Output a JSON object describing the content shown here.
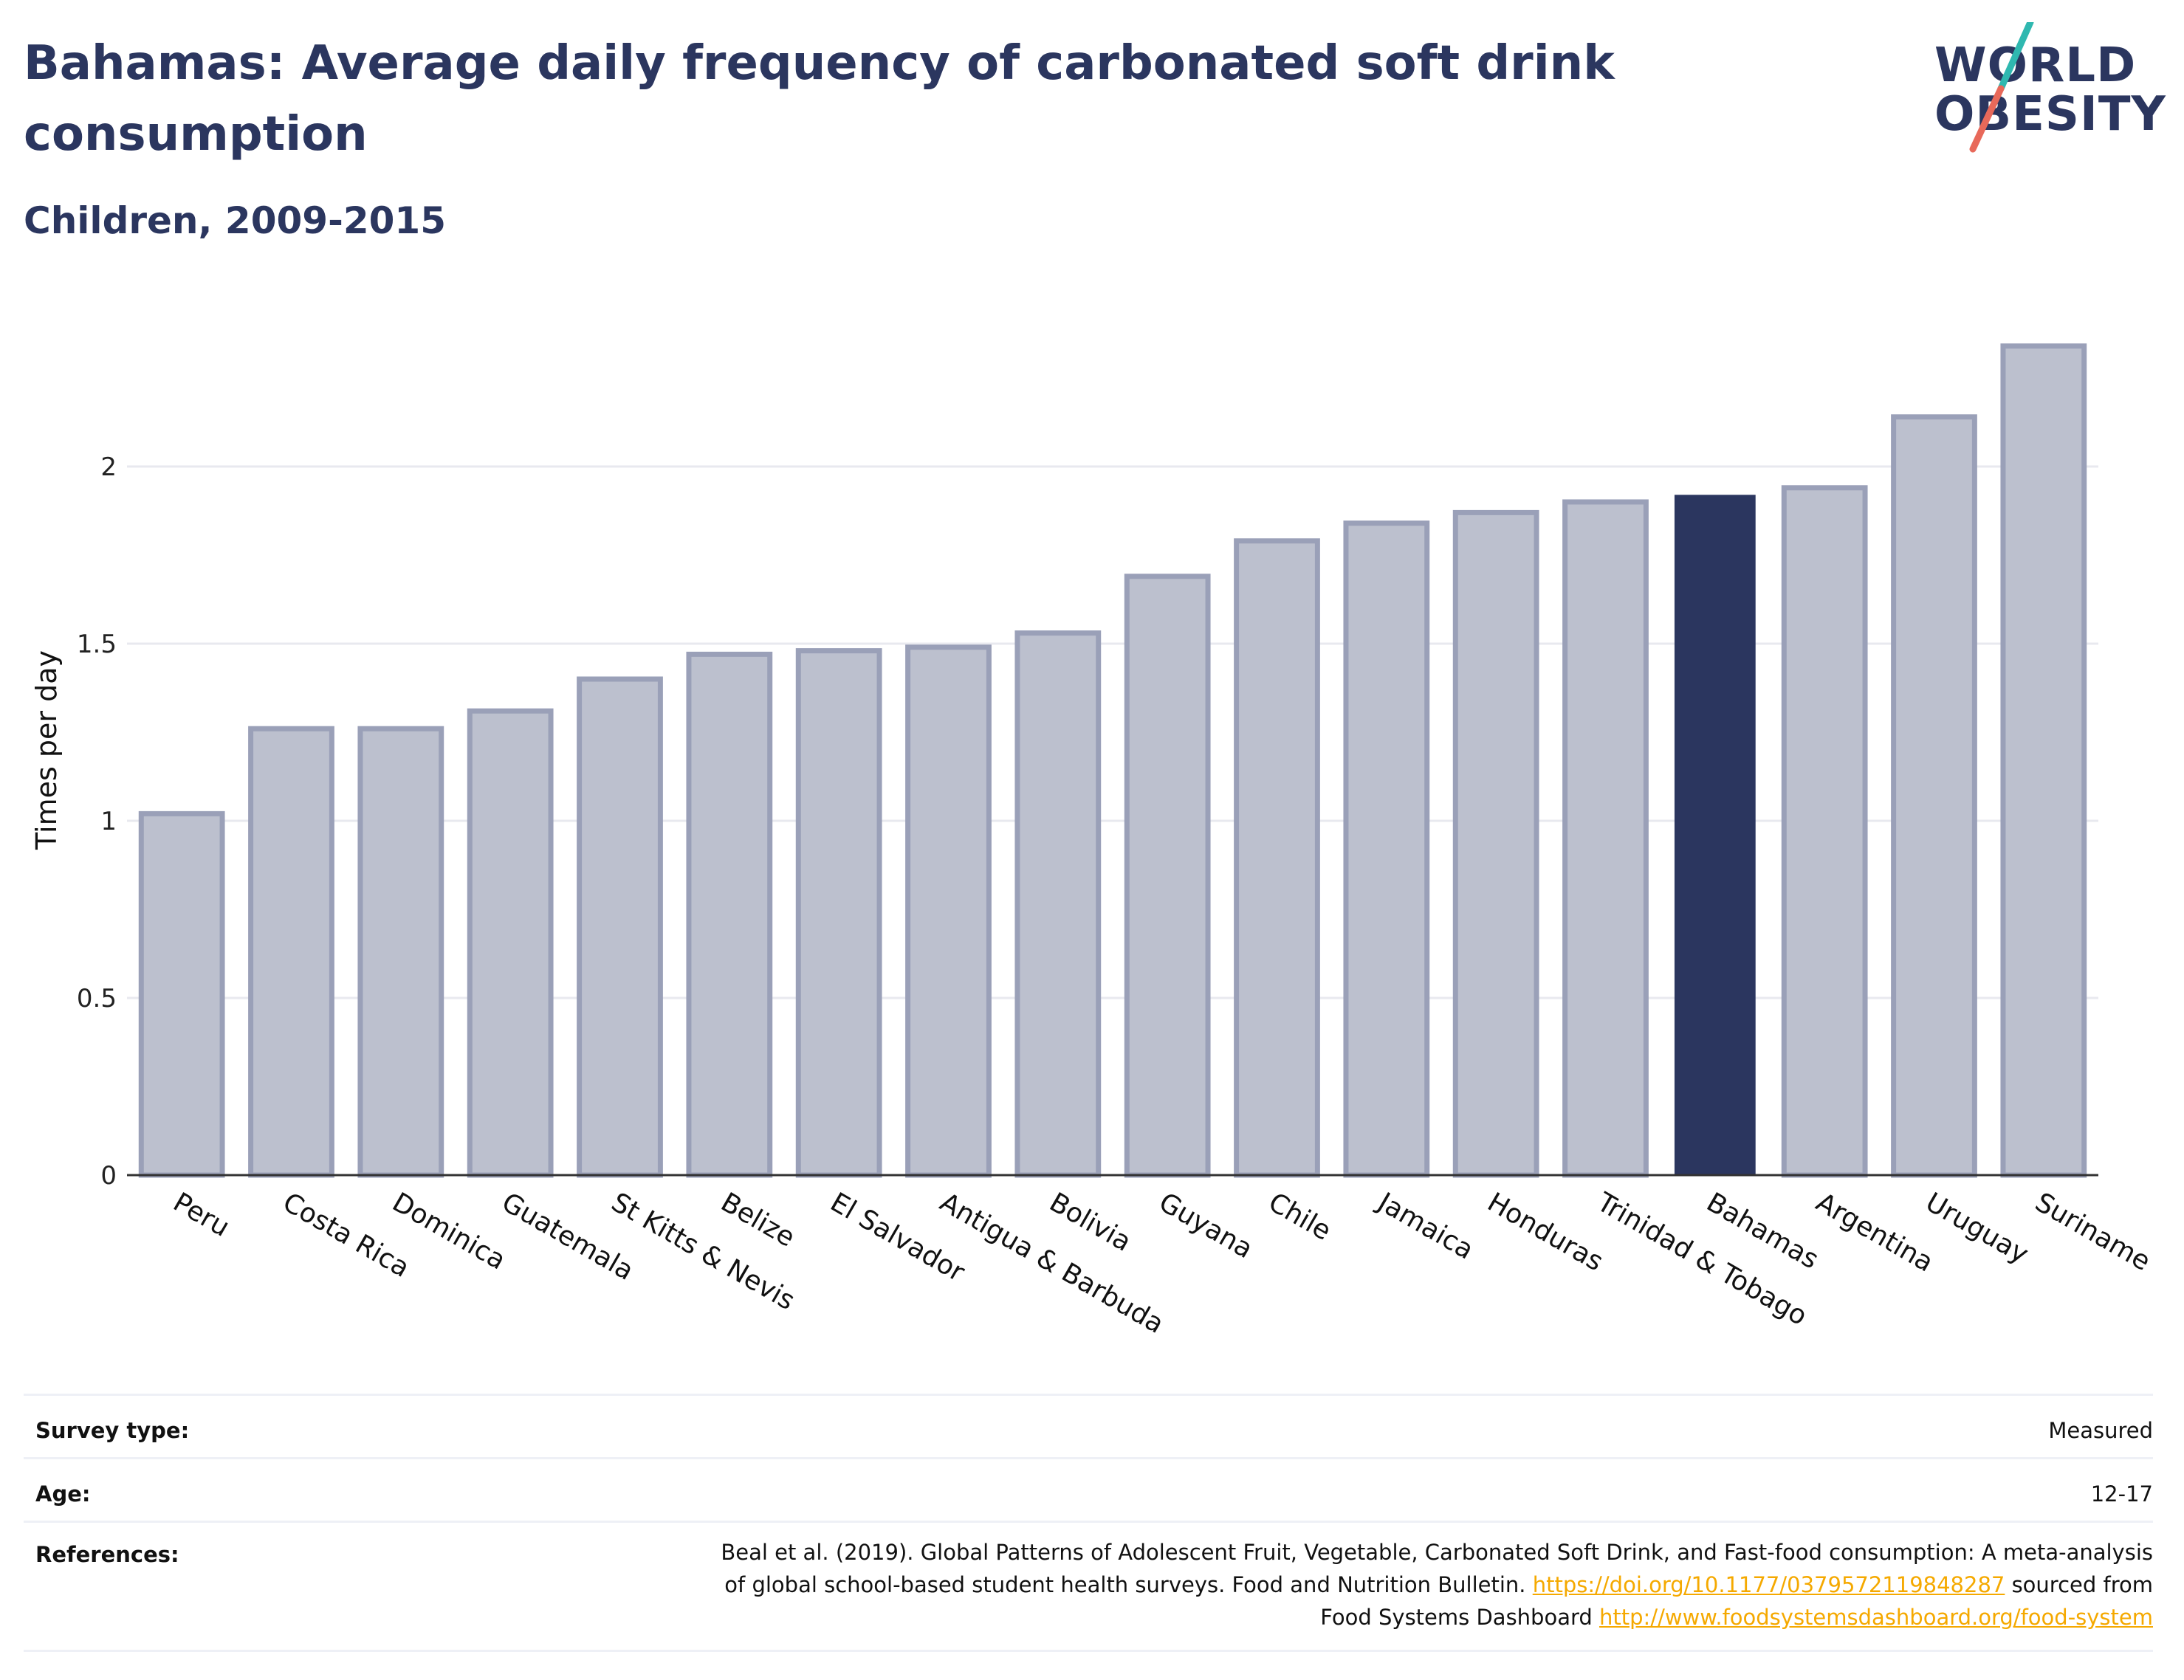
{
  "header": {
    "title": "Bahamas: Average daily frequency of carbonated soft drink consumption",
    "subtitle": "Children, 2009-2015"
  },
  "logo": {
    "line1": "WORLD",
    "line2": "OBESITY"
  },
  "colors": {
    "highlight": "#2b365f",
    "bar": "#bcc0ce",
    "bar_border": "#9aa0b8",
    "title": "#2b365f",
    "link": "#f5a900",
    "grid": "#e8e9ef"
  },
  "chart_data": {
    "type": "bar",
    "categories": [
      "Peru",
      "Costa Rica",
      "Dominica",
      "Guatemala",
      "St Kitts & Nevis",
      "Belize",
      "El Salvador",
      "Antigua & Barbuda",
      "Bolivia",
      "Guyana",
      "Chile",
      "Jamaica",
      "Honduras",
      "Trinidad & Tobago",
      "Bahamas",
      "Argentina",
      "Uruguay",
      "Suriname"
    ],
    "values": [
      1.02,
      1.26,
      1.26,
      1.31,
      1.4,
      1.47,
      1.48,
      1.49,
      1.53,
      1.69,
      1.79,
      1.84,
      1.87,
      1.9,
      1.92,
      1.94,
      2.14,
      2.34
    ],
    "highlight": "Bahamas",
    "ylabel": "Times per day",
    "yticks": [
      0,
      0.5,
      1,
      1.5,
      2
    ],
    "ytick_labels": [
      "0",
      "0.5",
      "1",
      "1.5",
      "2"
    ],
    "ylim": [
      0,
      2.4
    ],
    "grid": true
  },
  "meta": {
    "survey_type_label": "Survey type:",
    "survey_type_value": "Measured",
    "age_label": "Age:",
    "age_value": "12-17",
    "references_label": "References:",
    "ref_text_1": "Beal et al. (2019). Global Patterns of Adolescent Fruit, Vegetable, Carbonated Soft Drink, and Fast-food consumption: A meta-analysis",
    "ref_text_2": "of global school-based student health surveys. Food and Nutrition Bulletin.",
    "ref_link_1": "https://doi.org/10.1177/0379572119848287",
    "ref_text_3": "sourced from",
    "ref_text_4": "Food Systems Dashboard",
    "ref_link_2": "http://www.foodsystemsdashboard.org/food-system"
  }
}
